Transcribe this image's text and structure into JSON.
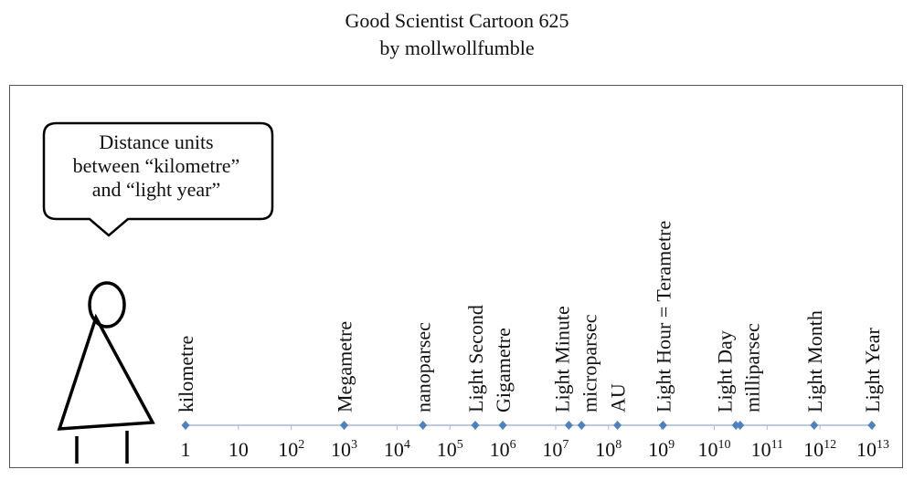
{
  "title": "Good Scientist Cartoon 625",
  "subtitle": "by mollwollfumble",
  "speech_bubble": [
    "Distance units",
    "between “kilometre”",
    "and “light year”"
  ],
  "chart_data": {
    "type": "scatter",
    "axis": "log10 of distance in kilometres",
    "xlim": [
      0,
      13
    ],
    "tick_labels": [
      {
        "base": "1",
        "exp": ""
      },
      {
        "base": "10",
        "exp": ""
      },
      {
        "base": "10",
        "exp": "2"
      },
      {
        "base": "10",
        "exp": "3"
      },
      {
        "base": "10",
        "exp": "4"
      },
      {
        "base": "10",
        "exp": "5"
      },
      {
        "base": "10",
        "exp": "6"
      },
      {
        "base": "10",
        "exp": "7"
      },
      {
        "base": "10",
        "exp": "8"
      },
      {
        "base": "10",
        "exp": "9"
      },
      {
        "base": "10",
        "exp": "10"
      },
      {
        "base": "10",
        "exp": "11"
      },
      {
        "base": "10",
        "exp": "12"
      },
      {
        "base": "10",
        "exp": "13"
      }
    ],
    "points": [
      {
        "label": "kilometre",
        "log10_km": 0
      },
      {
        "label": "Megametre",
        "log10_km": 3
      },
      {
        "label": "nanoparsec",
        "log10_km": 4.49
      },
      {
        "label": "Light Second",
        "log10_km": 5.48
      },
      {
        "label": "Gigametre",
        "log10_km": 6
      },
      {
        "label": "Light Minute",
        "log10_km": 7.25
      },
      {
        "label": "microparsec",
        "log10_km": 7.49
      },
      {
        "label": "AU",
        "log10_km": 8.17
      },
      {
        "label": "Light Hour = Terametre",
        "log10_km": 9.03
      },
      {
        "label": "Light Day",
        "log10_km": 10.41
      },
      {
        "label": "milliparsec",
        "log10_km": 10.49
      },
      {
        "label": "Light Month",
        "log10_km": 11.89
      },
      {
        "label": "Light Year",
        "log10_km": 12.98
      }
    ],
    "colors": {
      "point": "#4f81bd",
      "axis": "#a6b8d4"
    }
  }
}
